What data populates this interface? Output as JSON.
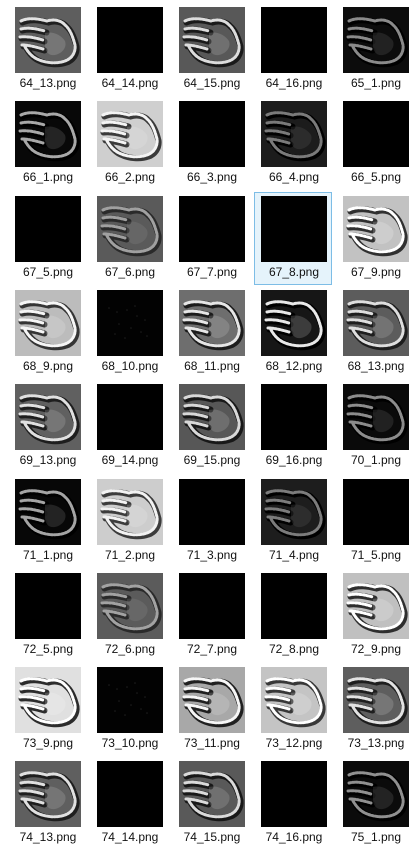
{
  "files": [
    {
      "name": "64_13.png",
      "thumb": "hand",
      "bg": "#5e5e5e",
      "fg": "#e2e2e2",
      "sh": "#202020"
    },
    {
      "name": "64_14.png",
      "thumb": "blank",
      "bg": "#000000"
    },
    {
      "name": "64_15.png",
      "thumb": "hand",
      "bg": "#585858",
      "fg": "#dcdcdc",
      "sh": "#1a1a1a"
    },
    {
      "name": "64_16.png",
      "thumb": "blank",
      "bg": "#000000"
    },
    {
      "name": "65_1.png",
      "thumb": "hand",
      "bg": "#0c0c0c",
      "fg": "#8a8a8a",
      "sh": "#000000"
    },
    {
      "name": "66_1.png",
      "thumb": "hand",
      "bg": "#080808",
      "fg": "#a8a8a8",
      "sh": "#000000"
    },
    {
      "name": "66_2.png",
      "thumb": "hand",
      "bg": "#cfcfcf",
      "fg": "#f4f4f4",
      "sh": "#3a3a3a"
    },
    {
      "name": "66_3.png",
      "thumb": "blank",
      "bg": "#000000"
    },
    {
      "name": "66_4.png",
      "thumb": "hand",
      "bg": "#1c1c1c",
      "fg": "#7a7a7a",
      "sh": "#000000"
    },
    {
      "name": "66_5.png",
      "thumb": "blank",
      "bg": "#000000"
    },
    {
      "name": "67_5.png",
      "thumb": "blank",
      "bg": "#000000"
    },
    {
      "name": "67_6.png",
      "thumb": "hand",
      "bg": "#5a5a5a",
      "fg": "#a0a0a0",
      "sh": "#2a2a2a"
    },
    {
      "name": "67_7.png",
      "thumb": "blank",
      "bg": "#000000"
    },
    {
      "name": "67_8.png",
      "thumb": "blank",
      "bg": "#000000",
      "selected": true
    },
    {
      "name": "67_9.png",
      "thumb": "hand",
      "bg": "#c2c2c2",
      "fg": "#ffffff",
      "sh": "#303030"
    },
    {
      "name": "68_9.png",
      "thumb": "hand",
      "bg": "#bcbcbc",
      "fg": "#f6f6f6",
      "sh": "#353535"
    },
    {
      "name": "68_10.png",
      "thumb": "faint",
      "bg": "#020202",
      "fg": "#1e1e1e"
    },
    {
      "name": "68_11.png",
      "thumb": "hand",
      "bg": "#6e6e6e",
      "fg": "#e6e6e6",
      "sh": "#1c1c1c"
    },
    {
      "name": "68_12.png",
      "thumb": "hand",
      "bg": "#161616",
      "fg": "#e8e8e8",
      "sh": "#000000"
    },
    {
      "name": "68_13.png",
      "thumb": "hand",
      "bg": "#5c5c5c",
      "fg": "#dedede",
      "sh": "#1e1e1e"
    },
    {
      "name": "69_13.png",
      "thumb": "hand",
      "bg": "#606060",
      "fg": "#e0e0e0",
      "sh": "#1e1e1e"
    },
    {
      "name": "69_14.png",
      "thumb": "blank",
      "bg": "#000000"
    },
    {
      "name": "69_15.png",
      "thumb": "hand",
      "bg": "#575757",
      "fg": "#d8d8d8",
      "sh": "#181818"
    },
    {
      "name": "69_16.png",
      "thumb": "blank",
      "bg": "#000000"
    },
    {
      "name": "70_1.png",
      "thumb": "hand",
      "bg": "#0a0a0a",
      "fg": "#8c8c8c",
      "sh": "#000000"
    },
    {
      "name": "71_1.png",
      "thumb": "hand",
      "bg": "#070707",
      "fg": "#a4a4a4",
      "sh": "#000000"
    },
    {
      "name": "71_2.png",
      "thumb": "hand",
      "bg": "#cdcdcd",
      "fg": "#f2f2f2",
      "sh": "#3c3c3c"
    },
    {
      "name": "71_3.png",
      "thumb": "blank",
      "bg": "#000000"
    },
    {
      "name": "71_4.png",
      "thumb": "hand",
      "bg": "#1d1d1d",
      "fg": "#7c7c7c",
      "sh": "#000000"
    },
    {
      "name": "71_5.png",
      "thumb": "blank",
      "bg": "#000000"
    },
    {
      "name": "72_5.png",
      "thumb": "blank",
      "bg": "#000000"
    },
    {
      "name": "72_6.png",
      "thumb": "hand",
      "bg": "#5b5b5b",
      "fg": "#a2a2a2",
      "sh": "#2a2a2a"
    },
    {
      "name": "72_7.png",
      "thumb": "blank",
      "bg": "#000000"
    },
    {
      "name": "72_8.png",
      "thumb": "blank",
      "bg": "#000000"
    },
    {
      "name": "72_9.png",
      "thumb": "hand",
      "bg": "#c0c0c0",
      "fg": "#ffffff",
      "sh": "#2e2e2e"
    },
    {
      "name": "73_9.png",
      "thumb": "hand",
      "bg": "#e0e0e0",
      "fg": "#ffffff",
      "sh": "#2c2c2c"
    },
    {
      "name": "73_10.png",
      "thumb": "faint",
      "bg": "#020202",
      "fg": "#202020"
    },
    {
      "name": "73_11.png",
      "thumb": "hand",
      "bg": "#a8a8a8",
      "fg": "#f6f6f6",
      "sh": "#202020"
    },
    {
      "name": "73_12.png",
      "thumb": "hand",
      "bg": "#c4c4c4",
      "fg": "#ffffff",
      "sh": "#383838"
    },
    {
      "name": "73_13.png",
      "thumb": "hand",
      "bg": "#5e5e5e",
      "fg": "#e2e2e2",
      "sh": "#1e1e1e"
    },
    {
      "name": "74_13.png",
      "thumb": "hand",
      "bg": "#5f5f5f",
      "fg": "#e0e0e0",
      "sh": "#1e1e1e"
    },
    {
      "name": "74_14.png",
      "thumb": "blank",
      "bg": "#000000"
    },
    {
      "name": "74_15.png",
      "thumb": "hand",
      "bg": "#595959",
      "fg": "#dadada",
      "sh": "#181818"
    },
    {
      "name": "74_16.png",
      "thumb": "blank",
      "bg": "#000000"
    },
    {
      "name": "75_1.png",
      "thumb": "hand",
      "bg": "#0b0b0b",
      "fg": "#909090",
      "sh": "#000000"
    }
  ]
}
